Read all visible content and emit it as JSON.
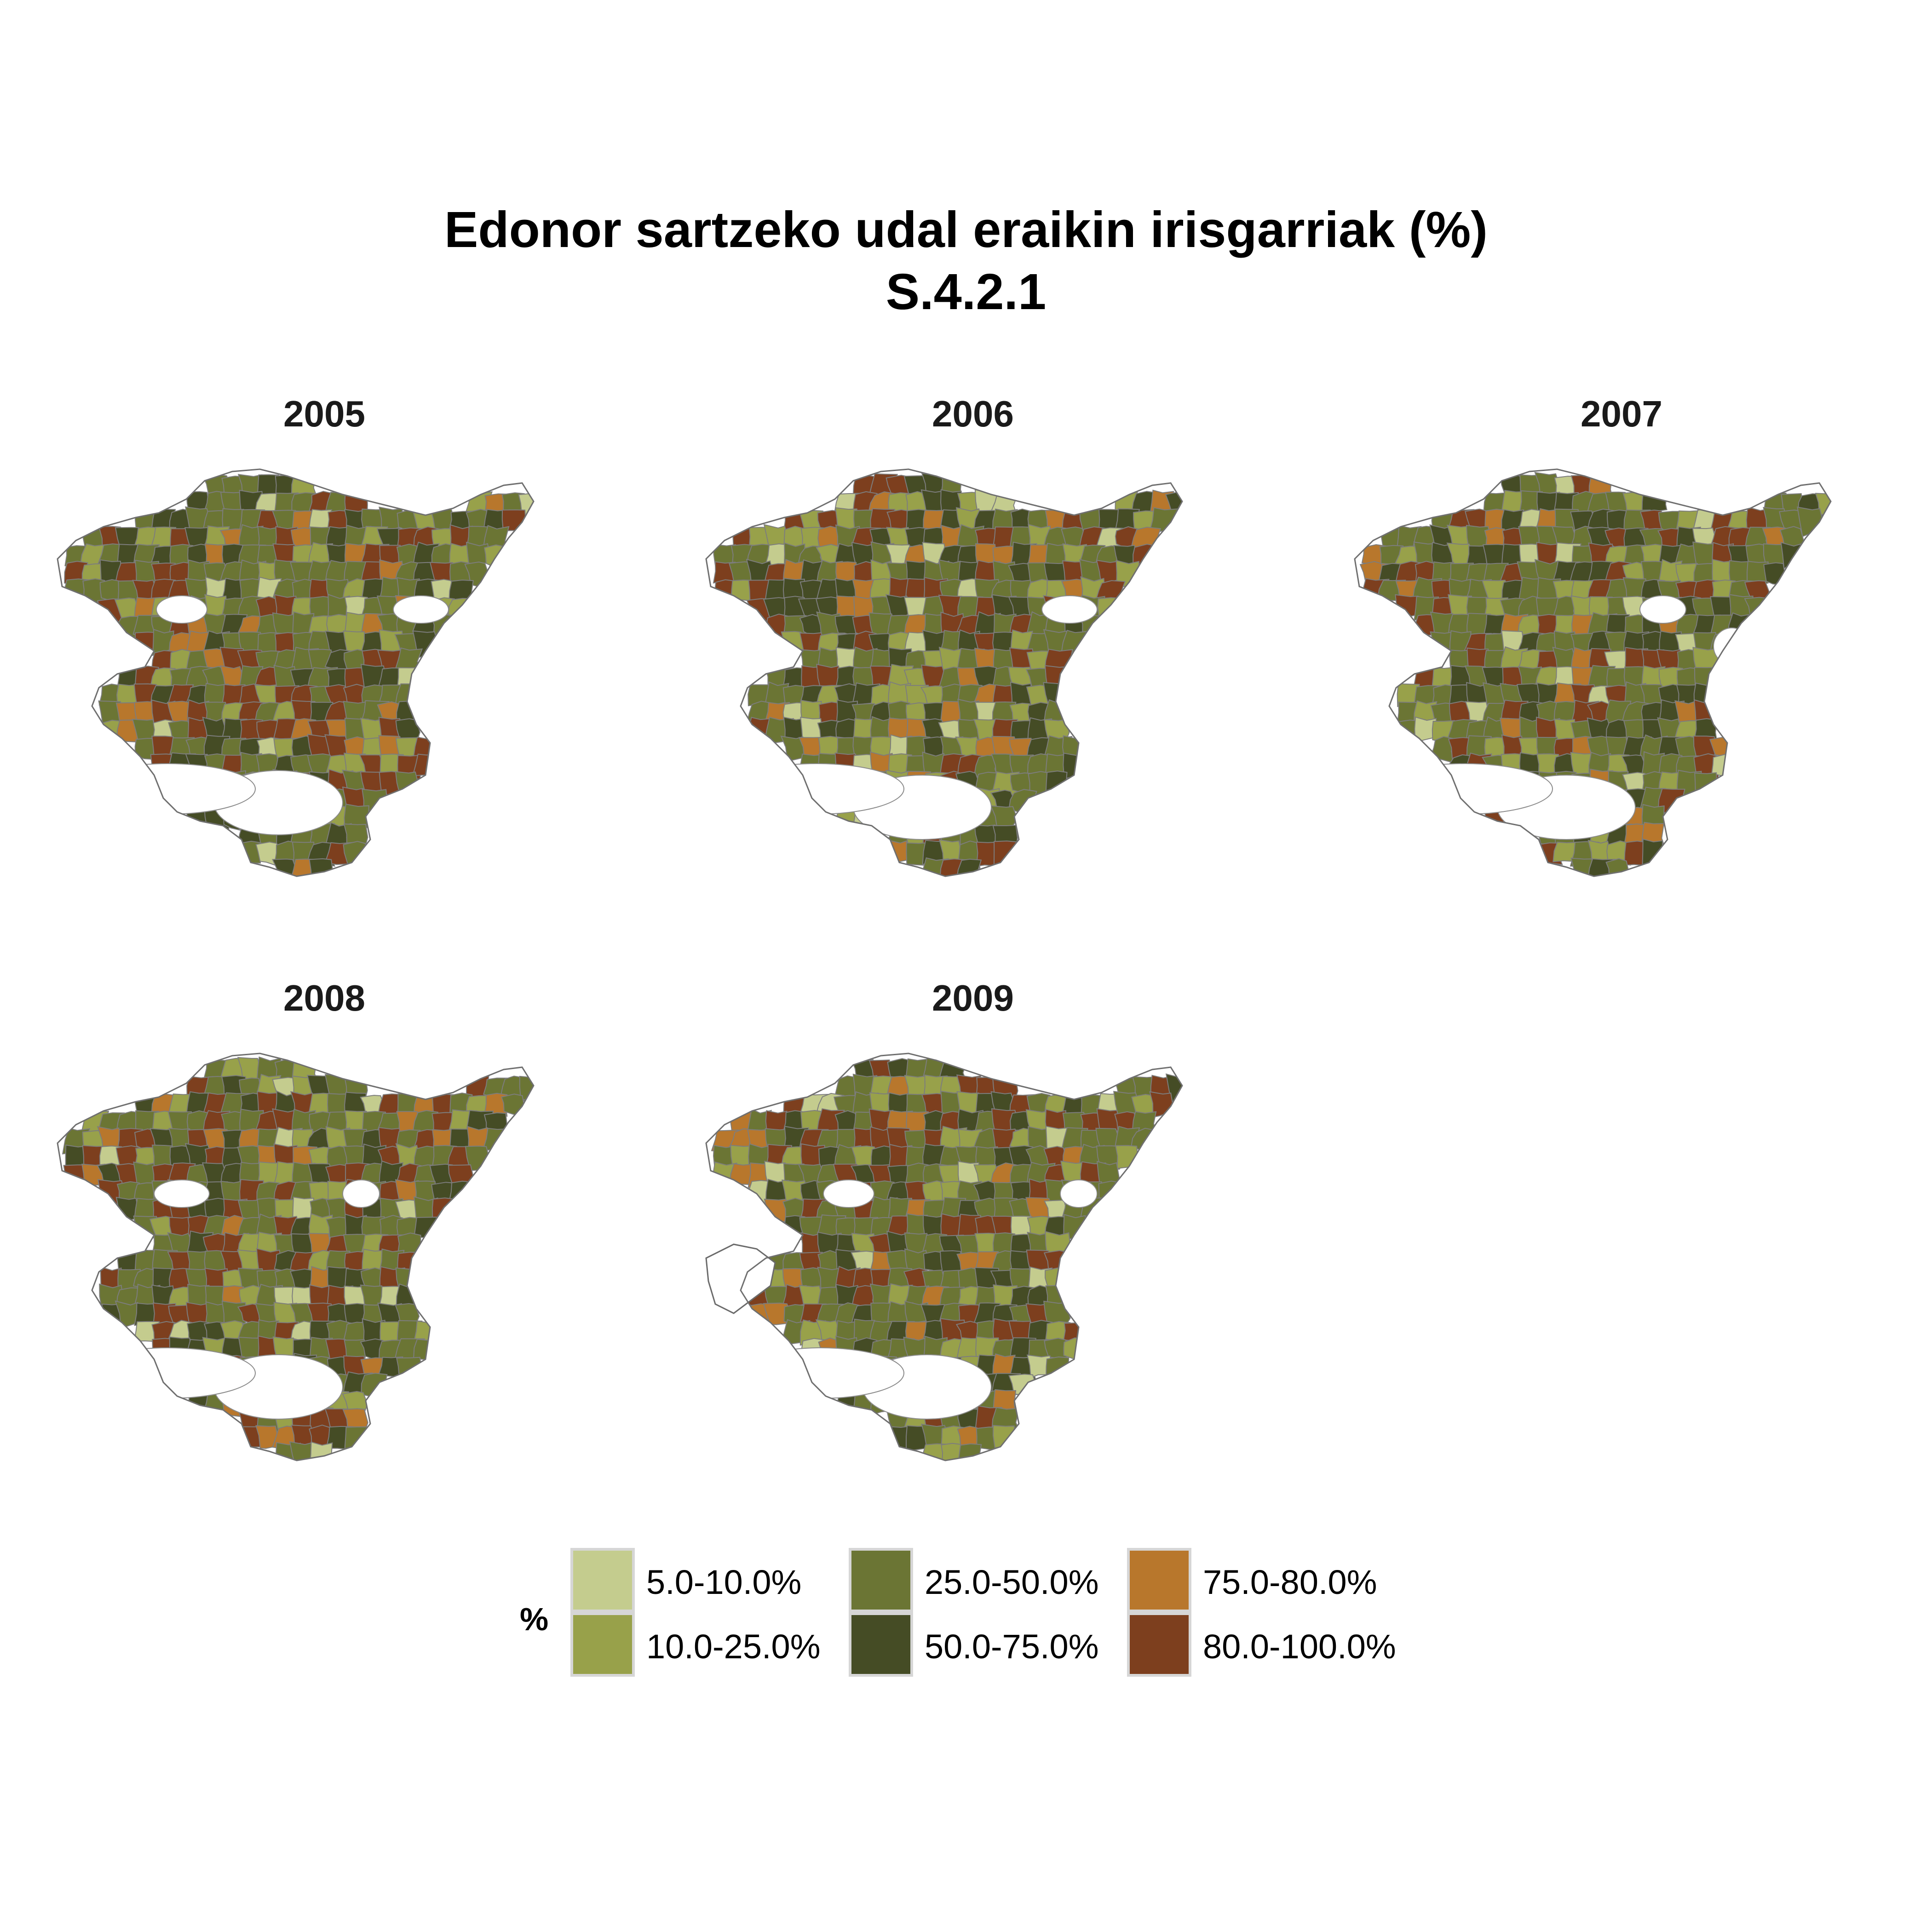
{
  "title": {
    "line1": "Edonor sartzeko udal eraikin irisgarriak (%)",
    "line2": "S.4.2.1"
  },
  "panels": [
    {
      "year": "2005",
      "seed": 11,
      "white": [
        [
          290,
          330,
          55,
          30
        ],
        [
          810,
          330,
          60,
          30
        ],
        [
          500,
          750,
          140,
          70
        ],
        [
          260,
          720,
          190,
          55
        ]
      ]
    },
    {
      "year": "2006",
      "seed": 23,
      "white": [
        [
          810,
          330,
          60,
          30
        ],
        [
          490,
          760,
          150,
          70
        ],
        [
          260,
          720,
          190,
          55
        ],
        [
          150,
          80,
          50,
          30
        ]
      ]
    },
    {
      "year": "2007",
      "seed": 37,
      "white": [
        [
          690,
          330,
          50,
          30
        ],
        [
          480,
          760,
          150,
          70
        ],
        [
          260,
          720,
          190,
          55
        ],
        [
          840,
          410,
          40,
          40
        ]
      ]
    },
    {
      "year": "2008",
      "seed": 51,
      "white": [
        [
          290,
          330,
          60,
          30
        ],
        [
          500,
          750,
          140,
          70
        ],
        [
          260,
          720,
          190,
          55
        ],
        [
          680,
          330,
          40,
          30
        ]
      ]
    },
    {
      "year": "2009",
      "seed": 67,
      "white": [
        [
          330,
          330,
          55,
          30
        ],
        [
          500,
          750,
          140,
          70
        ],
        [
          270,
          720,
          180,
          55
        ],
        [
          830,
          330,
          40,
          30
        ]
      ],
      "outline_only": true
    }
  ],
  "legend": {
    "title": "%",
    "items": [
      {
        "label": "5.0-10.0%",
        "color": "#c4cc8e"
      },
      {
        "label": "10.0-25.0%",
        "color": "#98a14a"
      },
      {
        "label": "25.0-50.0%",
        "color": "#6b7534"
      },
      {
        "label": "50.0-75.0%",
        "color": "#454c25"
      },
      {
        "label": "75.0-80.0%",
        "color": "#b8772c"
      },
      {
        "label": "80.0-100.0%",
        "color": "#7d3f1e"
      }
    ]
  }
}
